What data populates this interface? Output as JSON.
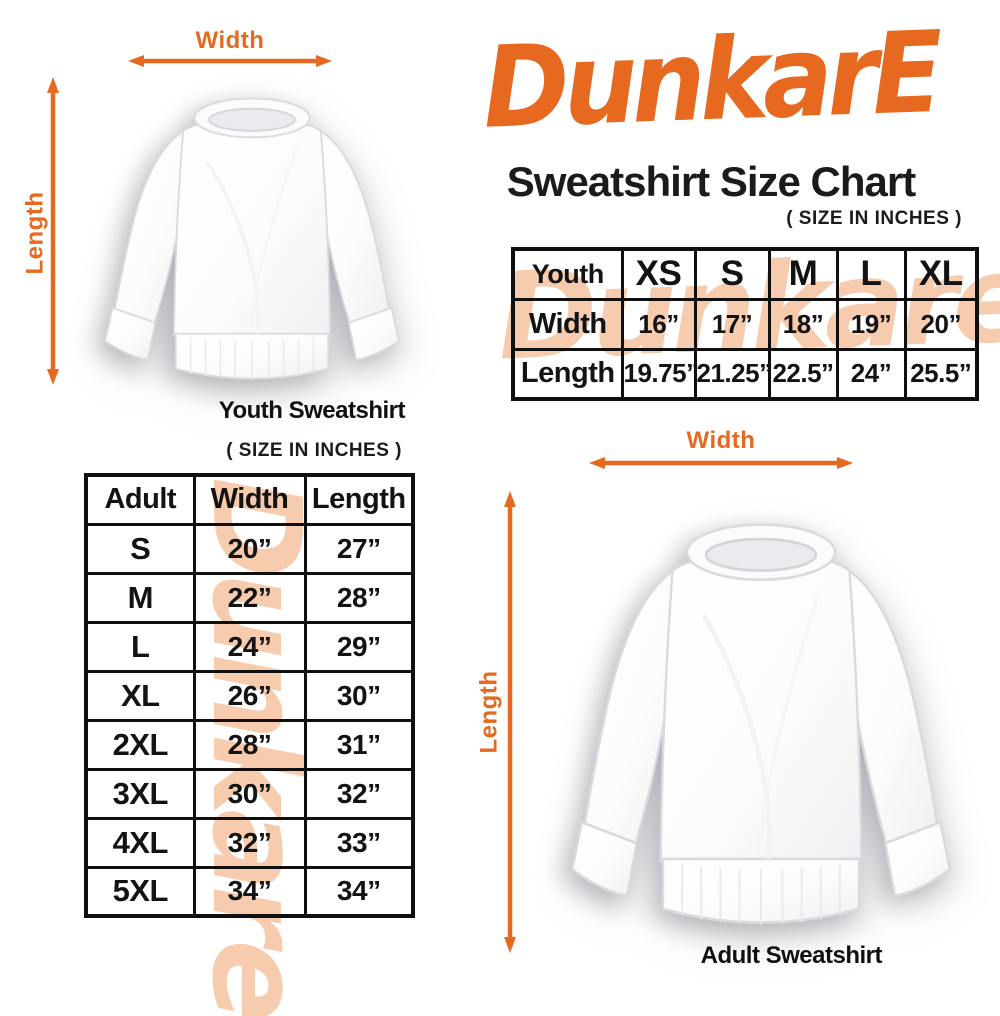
{
  "brand": {
    "logo_text": "DunkarE",
    "watermark_text": "Dunkare",
    "accent_color": "#E6691F",
    "watermark_color": "#F6CBAE"
  },
  "header": {
    "title": "Sweatshirt Size Chart",
    "units_note": "( SIZE IN INCHES )"
  },
  "youth_figure": {
    "width_label": "Width",
    "length_label": "Length",
    "caption": "Youth Sweatshirt"
  },
  "adult_figure": {
    "width_label": "Width",
    "length_label": "Length",
    "caption": "Adult Sweatshirt"
  },
  "adult_table_note": "( SIZE IN INCHES )",
  "chart_data": [
    {
      "type": "table",
      "title": "Youth Sweatshirt",
      "units": "inches",
      "columns": [
        "Youth",
        "XS",
        "S",
        "M",
        "L",
        "XL"
      ],
      "rows": [
        [
          "Width",
          "16”",
          "17”",
          "18”",
          "19”",
          "20”"
        ],
        [
          "Length",
          "19.75”",
          "21.25”",
          "22.5”",
          "24”",
          "25.5”"
        ]
      ]
    },
    {
      "type": "table",
      "title": "Adult Sweatshirt",
      "units": "inches",
      "columns": [
        "Adult",
        "Width",
        "Length"
      ],
      "rows": [
        [
          "S",
          "20”",
          "27”"
        ],
        [
          "M",
          "22”",
          "28”"
        ],
        [
          "L",
          "24”",
          "29”"
        ],
        [
          "XL",
          "26”",
          "30”"
        ],
        [
          "2XL",
          "28”",
          "31”"
        ],
        [
          "3XL",
          "30”",
          "32”"
        ],
        [
          "4XL",
          "32”",
          "33”"
        ],
        [
          "5XL",
          "34”",
          "34”"
        ]
      ]
    }
  ]
}
